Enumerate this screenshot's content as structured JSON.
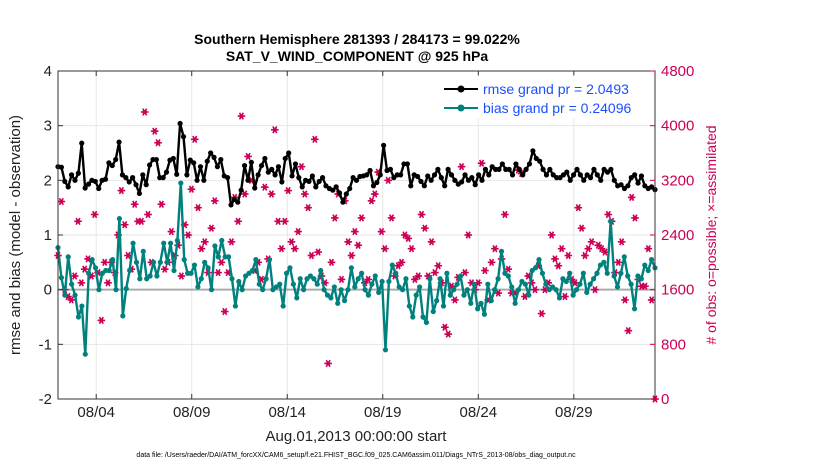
{
  "chart_data": {
    "type": "line",
    "title": "Southern Hemisphere 281393 / 284173 = 99.022%",
    "subtitle": "SAT_V_WIND_COMPONENT @ 925 hPa",
    "xlabel": "Aug.01,2013 00:00:00 start",
    "ylabel": "rmse and bias (model - observation)",
    "ylabel_right": "# of obs: o=possible; ×=assimilated",
    "footnote": "data file: /Users/raeder/DAI/ATM_forcXX/CAM6_setup/f.e21.FHIST_BGC.f09_025.CAM6assim.011/Diags_NTrS_2013-08/obs_diag_output.nc",
    "x_unit": "day of August 2013",
    "xlim": [
      1,
      32.25
    ],
    "ylim": [
      -2,
      4
    ],
    "ylim_right": [
      0,
      4800
    ],
    "x_tick_values": [
      3,
      8,
      13,
      18,
      23,
      28
    ],
    "x_tick_labels": [
      "08/04",
      "08/09",
      "08/14",
      "08/19",
      "08/24",
      "08/29"
    ],
    "y_ticks": [
      "4",
      "3",
      "2",
      "1",
      "0",
      "-1",
      "-2"
    ],
    "y_right_ticks": [
      "4800",
      "4000",
      "3200",
      "2400",
      "1600",
      "800",
      "0"
    ],
    "legend_position": "top-right",
    "series": [
      {
        "name": "rmse grand pr = 2.0493",
        "color": "#000000",
        "axis": "left",
        "values": [
          2.25,
          2.24,
          1.98,
          1.88,
          2.1,
          2.0,
          2.13,
          2.68,
          1.86,
          1.93,
          2.0,
          1.98,
          1.85,
          2.0,
          2.02,
          2.32,
          2.27,
          2.38,
          2.7,
          2.1,
          2.05,
          1.97,
          2.05,
          1.92,
          1.76,
          2.1,
          1.92,
          2.28,
          2.38,
          2.38,
          2.05,
          2.05,
          2.15,
          2.37,
          2.4,
          2.11,
          3.04,
          2.8,
          2.1,
          2.37,
          2.32,
          2.0,
          2.25,
          2.0,
          2.35,
          2.5,
          2.42,
          2.25,
          2.38,
          2.08,
          2.05,
          1.55,
          1.65,
          1.6,
          1.82,
          2.27,
          2.0,
          2.33,
          1.86,
          2.1,
          2.27,
          2.4,
          2.15,
          2.2,
          2.1,
          2.25,
          1.97,
          2.4,
          2.5,
          2.08,
          2.3,
          2.05,
          1.88,
          2.0,
          1.98,
          2.08,
          1.88,
          1.98,
          2.05,
          1.9,
          1.85,
          1.82,
          1.88,
          1.77,
          1.6,
          1.75,
          1.85,
          2.05,
          2.0,
          2.07,
          2.08,
          2.1,
          2.18,
          1.9,
          1.96,
          2.1,
          2.64,
          2.18,
          2.2,
          2.05,
          2.1,
          2.1,
          2.3,
          2.3,
          1.9,
          2.1,
          2.07,
          1.98,
          1.9,
          2.08,
          2.0,
          2.1,
          2.2,
          2.05,
          1.9,
          2.2,
          2.1,
          2.0,
          1.93,
          1.97,
          2.1,
          2.0,
          2.05,
          1.92,
          2.1,
          2.0,
          2.2,
          2.1,
          2.25,
          2.2,
          2.2,
          2.3,
          2.2,
          2.2,
          2.1,
          2.3,
          2.2,
          2.1,
          2.2,
          2.3,
          2.54,
          2.4,
          2.35,
          2.2,
          2.1,
          2.2,
          2.1,
          2.05,
          2.05,
          2.1,
          2.15,
          2.0,
          2.1,
          2.2,
          2.1,
          2.0,
          2.1,
          2.05,
          2.2,
          2.1,
          2.0,
          2.2,
          2.15,
          2.2,
          2.0,
          1.9,
          1.92,
          1.85,
          1.9,
          2.05,
          2.1,
          1.95,
          2.08,
          1.9,
          1.85,
          1.88,
          1.83
        ]
      },
      {
        "name": "bias grand pr = 0.24096",
        "color": "#00817e",
        "axis": "left",
        "values": [
          0.77,
          0.22,
          -0.1,
          0.6,
          0.1,
          -0.1,
          -0.5,
          -0.3,
          -1.18,
          0.3,
          0.55,
          0.4,
          0.0,
          0.3,
          0.35,
          0.35,
          0.55,
          0.0,
          1.3,
          -0.48,
          0.02,
          0.35,
          0.85,
          0.5,
          0.2,
          0.7,
          0.2,
          0.25,
          0.5,
          0.25,
          0.5,
          0.85,
          0.5,
          0.85,
          0.35,
          0.9,
          1.95,
          0.55,
          0.3,
          0.3,
          0.45,
          0.05,
          0.2,
          0.5,
          0.4,
          0.0,
          0.8,
          0.6,
          0.9,
          0.6,
          0.6,
          0.2,
          -0.3,
          0.15,
          0.0,
          0.25,
          0.3,
          0.35,
          0.55,
          0.1,
          0.0,
          0.2,
          0.55,
          0.0,
          0.05,
          0.1,
          -0.3,
          0.3,
          0.4,
          0.1,
          -0.15,
          0.2,
          0.0,
          0.2,
          0.25,
          0.2,
          0.1,
          0.35,
          0.0,
          -0.1,
          -0.15,
          0.05,
          -0.25,
          0.0,
          -0.2,
          0.0,
          0.4,
          0.05,
          0.2,
          0.3,
          0.0,
          -0.1,
          0.1,
          0.25,
          -0.05,
          0.15,
          -1.1,
          0.15,
          0.45,
          0.3,
          0.05,
          0.0,
          0.2,
          -0.3,
          -0.5,
          -0.1,
          0.05,
          -0.5,
          -0.6,
          0.2,
          -0.4,
          -0.2,
          0.2,
          -0.3,
          0.3,
          -0.1,
          0.0,
          0.1,
          0.25,
          -0.1,
          0.0,
          -0.25,
          0.1,
          -0.35,
          -0.25,
          -0.45,
          0.1,
          -0.2,
          0.0,
          0.2,
          0.7,
          0.3,
          0.25,
          0.05,
          -0.25,
          0.0,
          0.15,
          0.1,
          -0.1,
          0.35,
          0.4,
          0.55,
          0.3,
          0.1,
          0.0,
          0.05,
          0.0,
          -0.15,
          0.2,
          0.15,
          0.3,
          -0.1,
          0.0,
          0.1,
          0.3,
          -0.05,
          0.1,
          0.2,
          0.3,
          0.45,
          0.5,
          0.3,
          1.25,
          0.25,
          0.05,
          0.3,
          0.6,
          0.25,
          0.1,
          -0.35,
          0.25,
          0.2,
          0.45,
          0.35,
          0.55,
          0.4
        ]
      },
      {
        "name": "# of obs assimilated",
        "color": "#cc0055",
        "axis": "right",
        "marker": "asterisk",
        "values": [
          2100,
          2890,
          1600,
          1500,
          1450,
          1800,
          2600,
          1700,
          1900,
          2050,
          1800,
          2700,
          1850,
          1150,
          2000,
          1700,
          2000,
          1850,
          2400,
          3050,
          2550,
          2100,
          1900,
          2850,
          2600,
          2600,
          4200,
          2700,
          2000,
          3920,
          3750,
          2850,
          1900,
          2000,
          2450,
          2100,
          2250,
          1800,
          2550,
          2400,
          3070,
          3800,
          2800,
          2200,
          2300,
          1850,
          2500,
          2900,
          1850,
          2000,
          1280,
          1850,
          2300,
          2950,
          2600,
          4140,
          3000,
          3550,
          3200,
          1880,
          2000,
          1750,
          3100,
          2050,
          3000,
          3940,
          2600,
          2200,
          2600,
          3050,
          2300,
          2200,
          2450,
          3400,
          3000,
          2800,
          2100,
          3800,
          2150,
          1800,
          1700,
          520,
          2000,
          2650,
          3000,
          1750,
          2900,
          2300,
          2100,
          2450,
          2250,
          2650,
          1700,
          1750,
          2900,
          3000,
          3320,
          2450,
          2200,
          3200,
          2650,
          1800,
          1950,
          2000,
          2400,
          2350,
          2200,
          1750,
          1800,
          2700,
          2500,
          1800,
          2300,
          1850,
          1950,
          1700,
          1050,
          950,
          1650,
          1450,
          1780,
          3400,
          1850,
          2400,
          1700,
          1600,
          1700,
          3450,
          1880,
          1450,
          2000,
          2200,
          1550,
          2050,
          2700,
          1900,
          1550,
          1550,
          3350,
          3300,
          1500,
          1800,
          1700,
          1600,
          1950,
          1250,
          1600,
          1700,
          2400,
          2050,
          1950,
          2200,
          1500,
          2100,
          1750,
          1700,
          2800,
          2500,
          2100,
          2200,
          2300,
          1600,
          2250,
          2200,
          2150,
          2700,
          2600,
          1850,
          2000,
          2300,
          1450,
          1000,
          2950,
          2650,
          1750,
          1650,
          1650,
          2200,
          1450,
          0
        ]
      }
    ]
  }
}
